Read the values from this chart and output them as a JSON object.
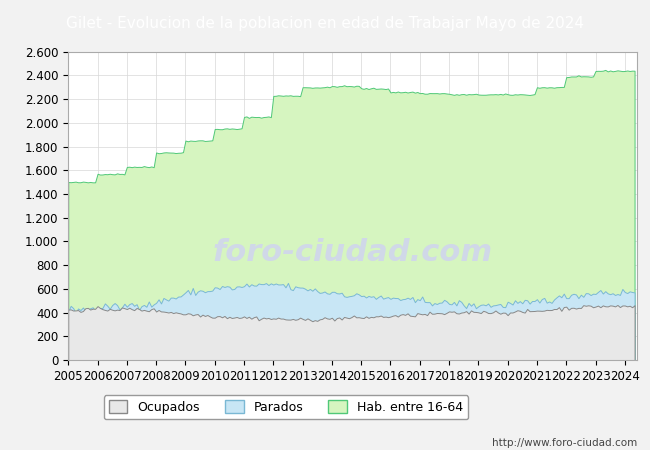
{
  "title": "Gilet - Evolucion de la poblacion en edad de Trabajar Mayo de 2024",
  "title_bg": "#4472c4",
  "title_color": "white",
  "ylim": [
    0,
    2600
  ],
  "yticks": [
    0,
    200,
    400,
    600,
    800,
    1000,
    1200,
    1400,
    1600,
    1800,
    2000,
    2200,
    2400,
    2600
  ],
  "ytick_labels": [
    "0",
    "200",
    "400",
    "600",
    "800",
    "1.000",
    "1.200",
    "1.400",
    "1.600",
    "1.800",
    "2.000",
    "2.200",
    "2.400",
    "2.600"
  ],
  "xtick_years": [
    2005,
    2006,
    2007,
    2008,
    2009,
    2010,
    2011,
    2012,
    2013,
    2014,
    2015,
    2016,
    2017,
    2018,
    2019,
    2020,
    2021,
    2022,
    2023,
    2024
  ],
  "hab_color": "#d6f5c0",
  "hab_edge": "#50c878",
  "parados_color": "#c8e6f5",
  "parados_edge": "#7ab8d4",
  "ocupados_color": "#e8e8e8",
  "ocupados_edge": "#888888",
  "legend_labels": [
    "Ocupados",
    "Parados",
    "Hab. entre 16-64"
  ],
  "url": "http://www.foro-ciudad.com",
  "bg_color": "#f2f2f2",
  "plot_bg": "white",
  "grid_color": "#d8d8d8",
  "watermark_color": "#d0d8e8",
  "title_fontsize": 11,
  "tick_fontsize": 8.5
}
